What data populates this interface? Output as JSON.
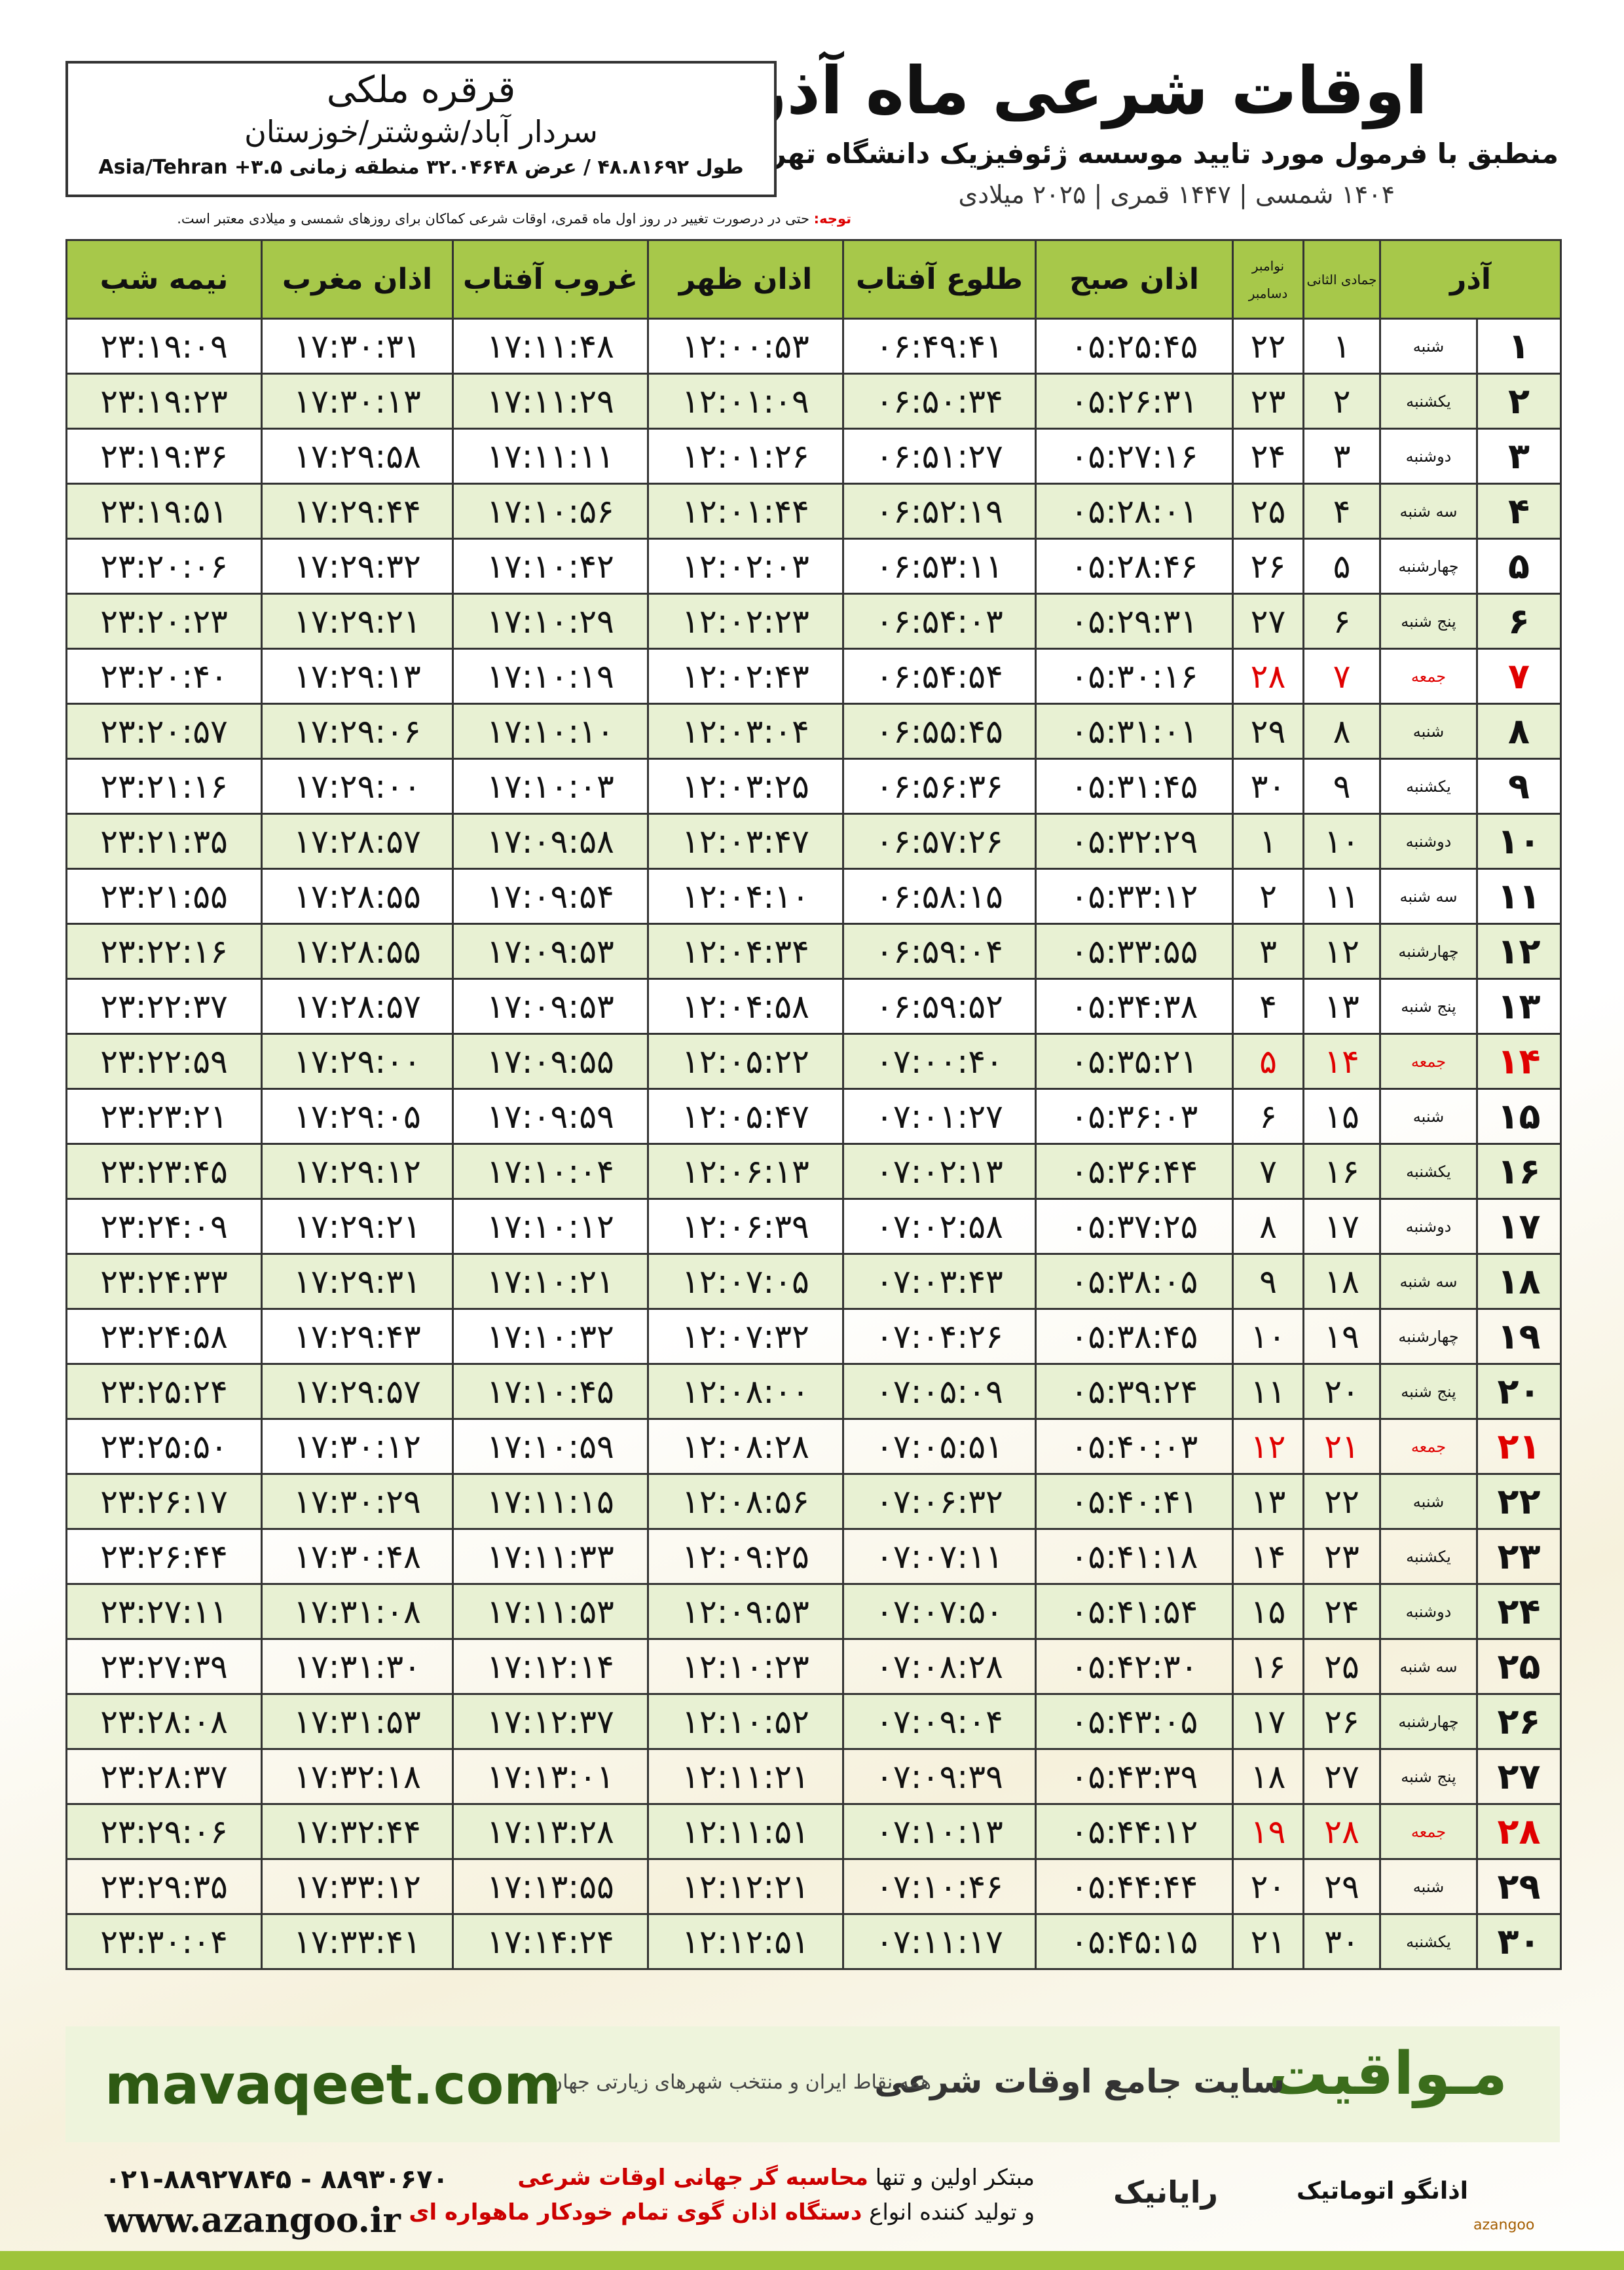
{
  "header": {
    "title": "اوقات شرعی ماه آذر",
    "subtitle": "منطبق با فرمول مورد تایید موسسه ژئوفیزیک دانشگاه تهران",
    "dates": "۱۴۰۴ شمسی | ۱۴۴۷ قمری | ۲۰۲۵ میلادی"
  },
  "location": {
    "name": "قرقره ملکی",
    "region": "سردار آباد/شوشتر/خوزستان",
    "coords": "طول ۴۸.۸۱۶۹۲ / عرض ۳۲.۰۴۶۴۸ منطقه زمانی ۳.۵+ Asia/Tehran"
  },
  "note": {
    "label": "توجه:",
    "text": "حتی در درصورت تغییر در روز اول ماه قمری، اوقات شرعی کماکان برای روزهای شمسی و میلادی معتبر است."
  },
  "table": {
    "columns": {
      "month": "آذر",
      "hijri": "جمادی الثانی",
      "greg_top": "نوامبر",
      "greg_bottom": "دسامبر",
      "times": [
        "اذان صبح",
        "طلوع آفتاب",
        "اذان ظهر",
        "غروب آفتاب",
        "اذان مغرب",
        "نیمه شب"
      ]
    },
    "rows": [
      [
        "۱",
        "شنبه",
        "۱",
        "۲۲",
        "۰۵:۲۵:۴۵",
        "۰۶:۴۹:۴۱",
        "۱۲:۰۰:۵۳",
        "۱۷:۱۱:۴۸",
        "۱۷:۳۰:۳۱",
        "۲۳:۱۹:۰۹"
      ],
      [
        "۲",
        "یکشنبه",
        "۲",
        "۲۳",
        "۰۵:۲۶:۳۱",
        "۰۶:۵۰:۳۴",
        "۱۲:۰۱:۰۹",
        "۱۷:۱۱:۲۹",
        "۱۷:۳۰:۱۳",
        "۲۳:۱۹:۲۳"
      ],
      [
        "۳",
        "دوشنبه",
        "۳",
        "۲۴",
        "۰۵:۲۷:۱۶",
        "۰۶:۵۱:۲۷",
        "۱۲:۰۱:۲۶",
        "۱۷:۱۱:۱۱",
        "۱۷:۲۹:۵۸",
        "۲۳:۱۹:۳۶"
      ],
      [
        "۴",
        "سه شنبه",
        "۴",
        "۲۵",
        "۰۵:۲۸:۰۱",
        "۰۶:۵۲:۱۹",
        "۱۲:۰۱:۴۴",
        "۱۷:۱۰:۵۶",
        "۱۷:۲۹:۴۴",
        "۲۳:۱۹:۵۱"
      ],
      [
        "۵",
        "چهارشنبه",
        "۵",
        "۲۶",
        "۰۵:۲۸:۴۶",
        "۰۶:۵۳:۱۱",
        "۱۲:۰۲:۰۳",
        "۱۷:۱۰:۴۲",
        "۱۷:۲۹:۳۲",
        "۲۳:۲۰:۰۶"
      ],
      [
        "۶",
        "پنج شنبه",
        "۶",
        "۲۷",
        "۰۵:۲۹:۳۱",
        "۰۶:۵۴:۰۳",
        "۱۲:۰۲:۲۳",
        "۱۷:۱۰:۲۹",
        "۱۷:۲۹:۲۱",
        "۲۳:۲۰:۲۳"
      ],
      [
        "۷",
        "جمعه",
        "۷",
        "۲۸",
        "۰۵:۳۰:۱۶",
        "۰۶:۵۴:۵۴",
        "۱۲:۰۲:۴۳",
        "۱۷:۱۰:۱۹",
        "۱۷:۲۹:۱۳",
        "۲۳:۲۰:۴۰"
      ],
      [
        "۸",
        "شنبه",
        "۸",
        "۲۹",
        "۰۵:۳۱:۰۱",
        "۰۶:۵۵:۴۵",
        "۱۲:۰۳:۰۴",
        "۱۷:۱۰:۱۰",
        "۱۷:۲۹:۰۶",
        "۲۳:۲۰:۵۷"
      ],
      [
        "۹",
        "یکشنبه",
        "۹",
        "۳۰",
        "۰۵:۳۱:۴۵",
        "۰۶:۵۶:۳۶",
        "۱۲:۰۳:۲۵",
        "۱۷:۱۰:۰۳",
        "۱۷:۲۹:۰۰",
        "۲۳:۲۱:۱۶"
      ],
      [
        "۱۰",
        "دوشنبه",
        "۱۰",
        "۱",
        "۰۵:۳۲:۲۹",
        "۰۶:۵۷:۲۶",
        "۱۲:۰۳:۴۷",
        "۱۷:۰۹:۵۸",
        "۱۷:۲۸:۵۷",
        "۲۳:۲۱:۳۵"
      ],
      [
        "۱۱",
        "سه شنبه",
        "۱۱",
        "۲",
        "۰۵:۳۳:۱۲",
        "۰۶:۵۸:۱۵",
        "۱۲:۰۴:۱۰",
        "۱۷:۰۹:۵۴",
        "۱۷:۲۸:۵۵",
        "۲۳:۲۱:۵۵"
      ],
      [
        "۱۲",
        "چهارشنبه",
        "۱۲",
        "۳",
        "۰۵:۳۳:۵۵",
        "۰۶:۵۹:۰۴",
        "۱۲:۰۴:۳۴",
        "۱۷:۰۹:۵۳",
        "۱۷:۲۸:۵۵",
        "۲۳:۲۲:۱۶"
      ],
      [
        "۱۳",
        "پنج شنبه",
        "۱۳",
        "۴",
        "۰۵:۳۴:۳۸",
        "۰۶:۵۹:۵۲",
        "۱۲:۰۴:۵۸",
        "۱۷:۰۹:۵۳",
        "۱۷:۲۸:۵۷",
        "۲۳:۲۲:۳۷"
      ],
      [
        "۱۴",
        "جمعه",
        "۱۴",
        "۵",
        "۰۵:۳۵:۲۱",
        "۰۷:۰۰:۴۰",
        "۱۲:۰۵:۲۲",
        "۱۷:۰۹:۵۵",
        "۱۷:۲۹:۰۰",
        "۲۳:۲۲:۵۹"
      ],
      [
        "۱۵",
        "شنبه",
        "۱۵",
        "۶",
        "۰۵:۳۶:۰۳",
        "۰۷:۰۱:۲۷",
        "۱۲:۰۵:۴۷",
        "۱۷:۰۹:۵۹",
        "۱۷:۲۹:۰۵",
        "۲۳:۲۳:۲۱"
      ],
      [
        "۱۶",
        "یکشنبه",
        "۱۶",
        "۷",
        "۰۵:۳۶:۴۴",
        "۰۷:۰۲:۱۳",
        "۱۲:۰۶:۱۳",
        "۱۷:۱۰:۰۴",
        "۱۷:۲۹:۱۲",
        "۲۳:۲۳:۴۵"
      ],
      [
        "۱۷",
        "دوشنبه",
        "۱۷",
        "۸",
        "۰۵:۳۷:۲۵",
        "۰۷:۰۲:۵۸",
        "۱۲:۰۶:۳۹",
        "۱۷:۱۰:۱۲",
        "۱۷:۲۹:۲۱",
        "۲۳:۲۴:۰۹"
      ],
      [
        "۱۸",
        "سه شنبه",
        "۱۸",
        "۹",
        "۰۵:۳۸:۰۵",
        "۰۷:۰۳:۴۳",
        "۱۲:۰۷:۰۵",
        "۱۷:۱۰:۲۱",
        "۱۷:۲۹:۳۱",
        "۲۳:۲۴:۳۳"
      ],
      [
        "۱۹",
        "چهارشنبه",
        "۱۹",
        "۱۰",
        "۰۵:۳۸:۴۵",
        "۰۷:۰۴:۲۶",
        "۱۲:۰۷:۳۲",
        "۱۷:۱۰:۳۲",
        "۱۷:۲۹:۴۳",
        "۲۳:۲۴:۵۸"
      ],
      [
        "۲۰",
        "پنج شنبه",
        "۲۰",
        "۱۱",
        "۰۵:۳۹:۲۴",
        "۰۷:۰۵:۰۹",
        "۱۲:۰۸:۰۰",
        "۱۷:۱۰:۴۵",
        "۱۷:۲۹:۵۷",
        "۲۳:۲۵:۲۴"
      ],
      [
        "۲۱",
        "جمعه",
        "۲۱",
        "۱۲",
        "۰۵:۴۰:۰۳",
        "۰۷:۰۵:۵۱",
        "۱۲:۰۸:۲۸",
        "۱۷:۱۰:۵۹",
        "۱۷:۳۰:۱۲",
        "۲۳:۲۵:۵۰"
      ],
      [
        "۲۲",
        "شنبه",
        "۲۲",
        "۱۳",
        "۰۵:۴۰:۴۱",
        "۰۷:۰۶:۳۲",
        "۱۲:۰۸:۵۶",
        "۱۷:۱۱:۱۵",
        "۱۷:۳۰:۲۹",
        "۲۳:۲۶:۱۷"
      ],
      [
        "۲۳",
        "یکشنبه",
        "۲۳",
        "۱۴",
        "۰۵:۴۱:۱۸",
        "۰۷:۰۷:۱۱",
        "۱۲:۰۹:۲۵",
        "۱۷:۱۱:۳۳",
        "۱۷:۳۰:۴۸",
        "۲۳:۲۶:۴۴"
      ],
      [
        "۲۴",
        "دوشنبه",
        "۲۴",
        "۱۵",
        "۰۵:۴۱:۵۴",
        "۰۷:۰۷:۵۰",
        "۱۲:۰۹:۵۳",
        "۱۷:۱۱:۵۳",
        "۱۷:۳۱:۰۸",
        "۲۳:۲۷:۱۱"
      ],
      [
        "۲۵",
        "سه شنبه",
        "۲۵",
        "۱۶",
        "۰۵:۴۲:۳۰",
        "۰۷:۰۸:۲۸",
        "۱۲:۱۰:۲۳",
        "۱۷:۱۲:۱۴",
        "۱۷:۳۱:۳۰",
        "۲۳:۲۷:۳۹"
      ],
      [
        "۲۶",
        "چهارشنبه",
        "۲۶",
        "۱۷",
        "۰۵:۴۳:۰۵",
        "۰۷:۰۹:۰۴",
        "۱۲:۱۰:۵۲",
        "۱۷:۱۲:۳۷",
        "۱۷:۳۱:۵۳",
        "۲۳:۲۸:۰۸"
      ],
      [
        "۲۷",
        "پنج شنبه",
        "۲۷",
        "۱۸",
        "۰۵:۴۳:۳۹",
        "۰۷:۰۹:۳۹",
        "۱۲:۱۱:۲۱",
        "۱۷:۱۳:۰۱",
        "۱۷:۳۲:۱۸",
        "۲۳:۲۸:۳۷"
      ],
      [
        "۲۸",
        "جمعه",
        "۲۸",
        "۱۹",
        "۰۵:۴۴:۱۲",
        "۰۷:۱۰:۱۳",
        "۱۲:۱۱:۵۱",
        "۱۷:۱۳:۲۸",
        "۱۷:۳۲:۴۴",
        "۲۳:۲۹:۰۶"
      ],
      [
        "۲۹",
        "شنبه",
        "۲۹",
        "۲۰",
        "۰۵:۴۴:۴۴",
        "۰۷:۱۰:۴۶",
        "۱۲:۱۲:۲۱",
        "۱۷:۱۳:۵۵",
        "۱۷:۳۳:۱۲",
        "۲۳:۲۹:۳۵"
      ],
      [
        "۳۰",
        "یکشنبه",
        "۳۰",
        "۲۱",
        "۰۵:۴۵:۱۵",
        "۰۷:۱۱:۱۷",
        "۱۲:۱۲:۵۱",
        "۱۷:۱۴:۲۴",
        "۱۷:۳۳:۴۱",
        "۲۳:۳۰:۰۴"
      ]
    ]
  },
  "banner": {
    "brand": "مـواقیت",
    "tagline": "سایت جامع اوقات شرعی",
    "sub": "همه نقاط ایران و منتخب شهرهای زیارتی جهان",
    "site": "mavaqeet.com"
  },
  "footer": {
    "phone": "۰۲۱-۸۸۹۲۷۸۴۵ - ۸۸۹۳۰۶۷۰",
    "web": "www.azangoo.ir",
    "line1_a": "مبتکر اولین و تنها",
    "line1_b": "محاسبه گر جهانی اوقات شرعی",
    "line2_a": "و تولید کننده انواع",
    "line2_b": "دستگاه اذان گوی تمام خودکار ماهواره ای",
    "logo1": "رایانیک",
    "logo2": "اذانگو اتوماتیک",
    "logo3": "azangoo"
  }
}
